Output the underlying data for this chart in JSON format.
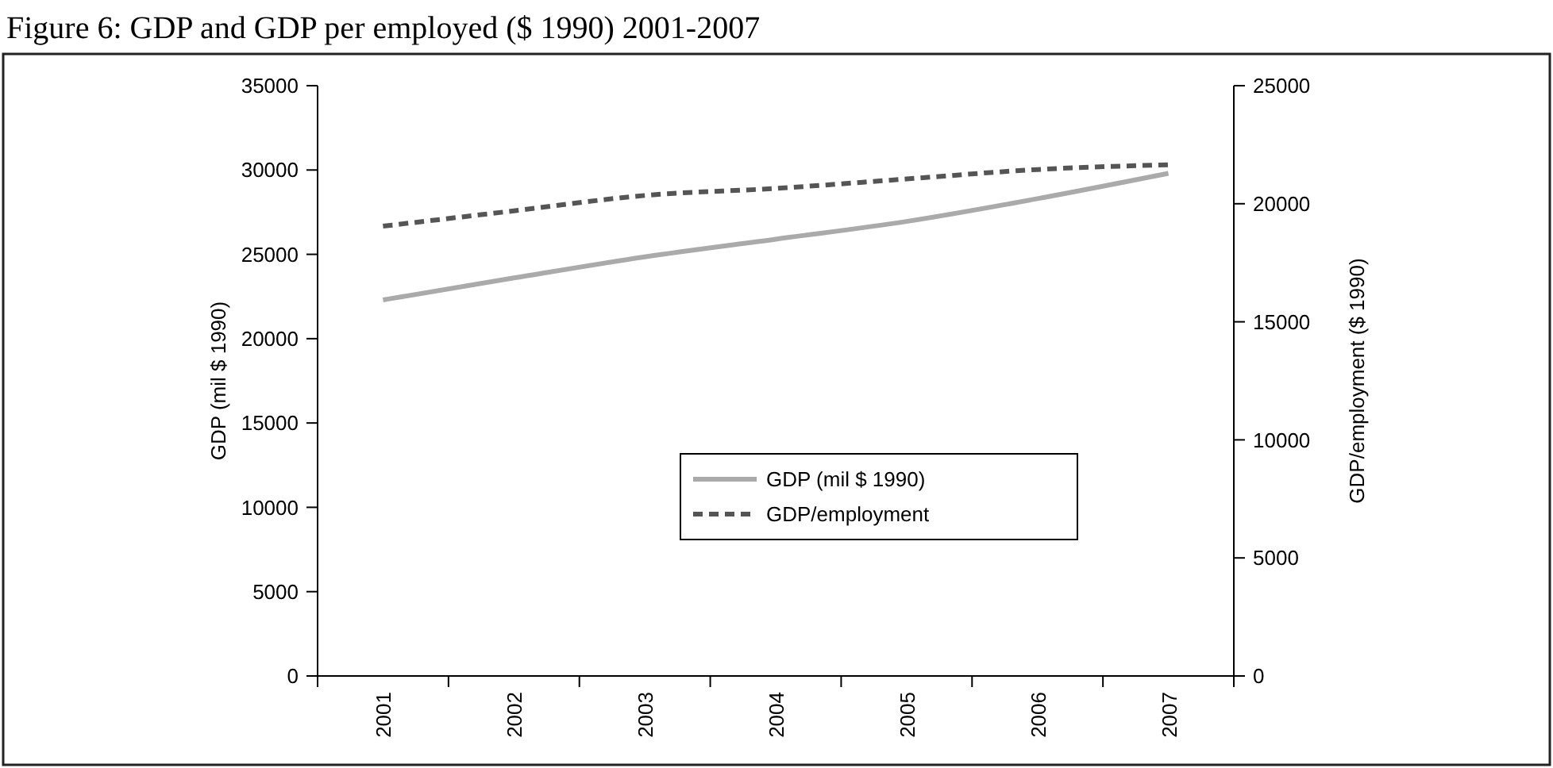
{
  "chart_data": {
    "type": "line",
    "title": "Figure 6: GDP and GDP per employed ($ 1990) 2001-2007",
    "categories": [
      "2001",
      "2002",
      "2003",
      "2004",
      "2005",
      "2006",
      "2007"
    ],
    "series": [
      {
        "name": "GDP (mil $ 1990)",
        "color": "#aaaaaa",
        "line_style": "solid",
        "values": [
          22300,
          23600,
          24850,
          25900,
          26950,
          28300,
          29800
        ]
      },
      {
        "name": "GDP/employment",
        "color": "#555555",
        "line_style": "dashed",
        "axis": "y2",
        "values": [
          19050,
          19700,
          20350,
          20650,
          21050,
          21450,
          21650
        ]
      }
    ],
    "ylabel": "GDP (mil $ 1990)",
    "y2label": "GDP/employment ($ 1990)",
    "ylim": [
      0,
      35000
    ],
    "yticks": [
      0,
      5000,
      10000,
      15000,
      20000,
      25000,
      30000,
      35000
    ],
    "y2lim": [
      0,
      25000
    ],
    "y2ticks": [
      0,
      5000,
      10000,
      15000,
      20000,
      25000
    ],
    "grid": false,
    "legend": "bottom",
    "marker": "none"
  }
}
